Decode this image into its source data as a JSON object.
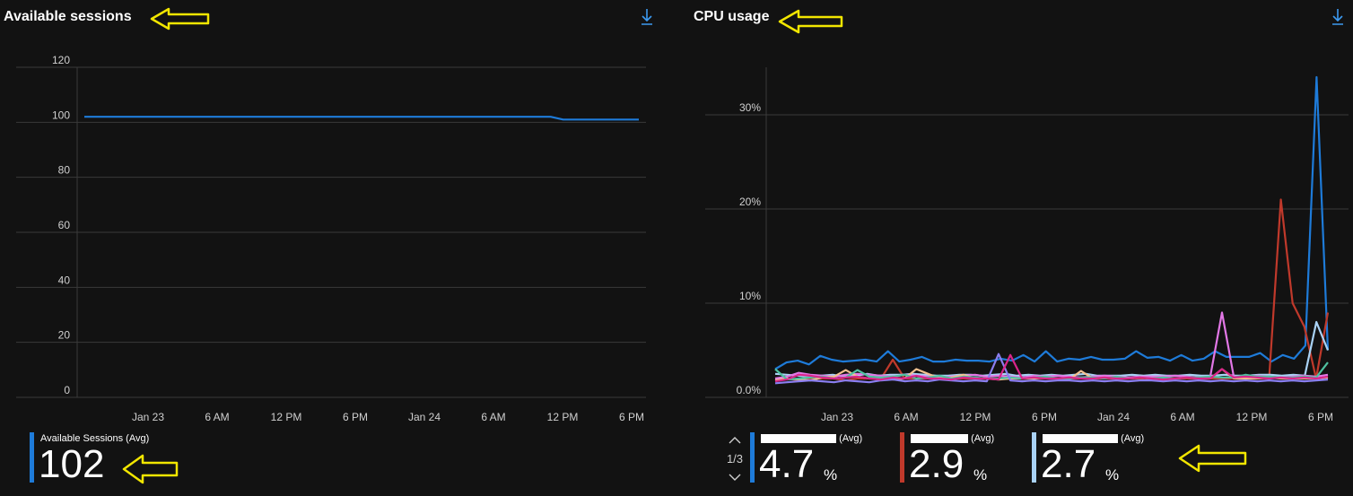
{
  "sessions_panel": {
    "title": "Available sessions",
    "legend": {
      "label": "Available Sessions (Avg)",
      "value": "102",
      "color": "#1e7bd9"
    }
  },
  "cpu_panel": {
    "title": "CPU usage",
    "pager": {
      "text": "1/3"
    },
    "legends": [
      {
        "label_suffix": "(Avg)",
        "value": "4.7",
        "unit": "%",
        "color": "#1e7bd9"
      },
      {
        "label_suffix": "(Avg)",
        "value": "2.9",
        "unit": "%",
        "color": "#c0392b"
      },
      {
        "label_suffix": "(Avg)",
        "value": "2.7",
        "unit": "%",
        "color": "#a9d2f5"
      }
    ]
  },
  "icons": {
    "download": "download-icon",
    "annotation": "arrow-left-icon"
  },
  "chart_data": [
    {
      "type": "line",
      "title": "Available sessions",
      "ylim": [
        0,
        120
      ],
      "yticks": [
        "120",
        "100",
        "80",
        "60",
        "40",
        "20",
        "0"
      ],
      "xticks": [
        "Jan 23",
        "6 AM",
        "12 PM",
        "6 PM",
        "Jan 24",
        "6 AM",
        "12 PM",
        "6 PM"
      ],
      "series": [
        {
          "name": "Available Sessions (Avg)",
          "color": "#1e7bd9",
          "values": [
            102,
            102,
            102,
            102,
            102,
            102,
            102,
            102,
            102,
            102,
            102,
            102,
            102,
            102,
            102,
            102,
            102,
            102,
            102,
            102,
            102,
            102,
            102,
            102,
            102,
            102,
            102,
            102,
            102,
            102,
            102,
            102,
            102,
            102,
            102,
            102,
            102,
            102,
            101,
            101,
            101,
            101,
            101,
            101,
            101
          ]
        }
      ]
    },
    {
      "type": "line",
      "title": "CPU usage",
      "ylim": [
        0,
        36
      ],
      "yticks": [
        "30%",
        "20%",
        "10%",
        "0.0%"
      ],
      "xticks": [
        "Jan 23",
        "6 AM",
        "12 PM",
        "6 PM",
        "Jan 24",
        "6 AM",
        "12 PM",
        "6 PM"
      ],
      "series": [
        {
          "color": "#1e7bd9",
          "values": [
            3,
            3.7,
            3.9,
            3.5,
            4.4,
            4,
            3.8,
            3.9,
            4,
            3.8,
            4.9,
            3.8,
            4,
            4.3,
            3.8,
            3.8,
            4,
            3.9,
            3.9,
            3.8,
            4.1,
            3.9,
            4.5,
            3.8,
            4.9,
            3.8,
            4.1,
            4,
            4.3,
            4,
            4,
            4.1,
            4.9,
            4.2,
            4.3,
            3.9,
            4.5,
            3.9,
            4.1,
            4.9,
            4.3,
            4.3,
            4.3,
            4.7,
            3.8,
            4.5,
            4.1,
            5.5,
            34,
            5
          ]
        },
        {
          "color": "#c0392b",
          "values": [
            2,
            2,
            1.8,
            2,
            2,
            2,
            1.8,
            2,
            2,
            2,
            4,
            2,
            2,
            2,
            2,
            2,
            2,
            2,
            2,
            2,
            2,
            2,
            2,
            2,
            2,
            2,
            2,
            2,
            2,
            2,
            2,
            2,
            2,
            2,
            2,
            2,
            2,
            2,
            2,
            2,
            2,
            2,
            2,
            21,
            10,
            7.5,
            2,
            9
          ]
        },
        {
          "color": "#a9d2f5",
          "values": [
            2.5,
            2.4,
            2.3,
            2.2,
            2.3,
            2.4,
            2.2,
            2.3,
            2.5,
            2.3,
            2.4,
            2.4,
            2.5,
            2.4,
            2.3,
            2.3,
            2.4,
            2.4,
            2.3,
            2.4,
            2.5,
            2.3,
            2.4,
            2.3,
            2.4,
            2.3,
            2.4,
            2.5,
            2.3,
            2.3,
            2.3,
            2.4,
            2.3,
            2.4,
            2.3,
            2.3,
            2.4,
            2.3,
            2.3,
            2.4,
            2.3,
            2.3,
            2.4,
            2.4,
            2.3,
            2.4,
            2.3,
            8,
            5
          ]
        },
        {
          "color": "#e277e6",
          "values": [
            2,
            2.2,
            2.6,
            2.4,
            2.3,
            2.2,
            2.4,
            2.5,
            2.4,
            2.3,
            2.2,
            2.4,
            2.3,
            2.2,
            2.1,
            2.2,
            2.3,
            2.4,
            2.2,
            2.3,
            2.2,
            2.1,
            2.3,
            2.2,
            2.3,
            2.2,
            2.1,
            2.2,
            2.3,
            2.2,
            2.1,
            2.2,
            2.2,
            2.2,
            2.3,
            2.2,
            2.1,
            2.2,
            9,
            2.2,
            2.2,
            2.3,
            2.2,
            2.1,
            2.2,
            2.3,
            2.2,
            2.4
          ]
        },
        {
          "color": "#f4c18f",
          "values": [
            1.8,
            2,
            1.9,
            1.8,
            2.1,
            2.2,
            2.9,
            2.2,
            2,
            2.1,
            1.9,
            2,
            3,
            2.5,
            2,
            2.1,
            2.4,
            2,
            2,
            1.9,
            2,
            2,
            2,
            2.1,
            2,
            1.9,
            2.8,
            2,
            2.1,
            2,
            2,
            2.1,
            2,
            2,
            2,
            2.1,
            2,
            2,
            3,
            2,
            2,
            2,
            2.1,
            2,
            2,
            2,
            2,
            2.1
          ]
        },
        {
          "color": "#4fc1a0",
          "values": [
            3,
            1.9,
            2,
            2.1,
            2.2,
            2,
            2.1,
            2.9,
            2.2,
            2.1,
            2.2,
            2.4,
            2,
            2.1,
            2.3,
            2,
            2.2,
            2.1,
            2,
            2,
            2.1,
            2,
            2.1,
            2.2,
            2,
            2,
            2.1,
            2.1,
            2,
            2.2,
            2,
            2.1,
            2,
            2.1,
            2,
            2.1,
            2.1,
            2.2,
            2.1,
            2.1,
            2.4,
            2.2,
            2.2,
            2.1,
            2.1,
            2.2,
            2.1,
            3.7
          ]
        },
        {
          "color": "#8a7ef0",
          "values": [
            1.5,
            1.6,
            1.7,
            1.8,
            1.7,
            1.6,
            1.8,
            1.7,
            1.6,
            1.8,
            1.9,
            1.7,
            1.8,
            1.7,
            1.9,
            1.8,
            1.7,
            1.8,
            1.7,
            4.6,
            1.8,
            1.7,
            1.8,
            1.7,
            1.8,
            1.8,
            1.7,
            1.8,
            1.7,
            1.8,
            1.7,
            1.8,
            1.8,
            1.7,
            1.8,
            1.7,
            1.8,
            1.7,
            1.8,
            1.7,
            1.8,
            1.7,
            1.8,
            1.7,
            1.8,
            1.7,
            1.8,
            1.9
          ]
        },
        {
          "color": "#d9258a",
          "values": [
            1.7,
            1.9,
            2.4,
            2.3,
            2.1,
            2,
            2.1,
            2.2,
            2,
            1.9,
            2.1,
            2,
            2.3,
            2,
            2,
            1.9,
            2.1,
            2,
            2,
            1.9,
            4.5,
            2,
            2.1,
            2,
            2,
            2.1,
            2,
            2,
            2.1,
            2,
            2,
            2.1,
            2,
            1.9,
            2,
            2.1,
            2,
            2,
            3,
            2.1,
            2.2,
            2.1,
            2,
            2.1,
            2,
            2.1,
            2,
            2.2
          ]
        }
      ]
    }
  ]
}
